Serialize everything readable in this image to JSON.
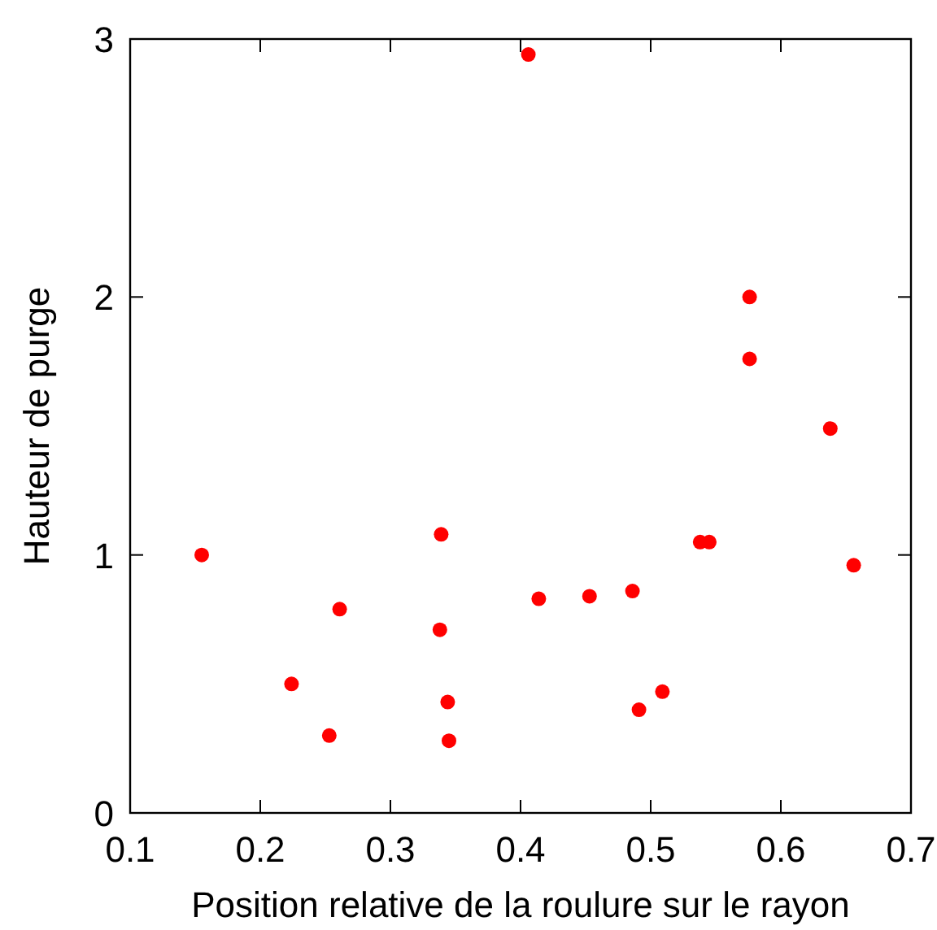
{
  "chart_data": {
    "type": "scatter",
    "xlabel": "Position relative de la roulure sur le rayon",
    "ylabel": "Hauteur de purge",
    "x": [
      0.155,
      0.406,
      0.224,
      0.261,
      0.253,
      0.339,
      0.338,
      0.344,
      0.345,
      0.414,
      0.453,
      0.486,
      0.491,
      0.509,
      0.538,
      0.545,
      0.576,
      0.576,
      0.638,
      0.656
    ],
    "series": [
      {
        "color": "#ff0000",
        "values": [
          1.0,
          2.94,
          0.5,
          0.79,
          0.3,
          1.08,
          0.71,
          0.43,
          0.28,
          0.83,
          0.84,
          0.86,
          0.4,
          0.47,
          1.05,
          1.05,
          2.0,
          1.76,
          1.49,
          0.96
        ]
      }
    ],
    "xlim": [
      0.1,
      0.7
    ],
    "xticks": [
      0.1,
      0.2,
      0.3,
      0.4,
      0.5,
      0.6,
      0.7
    ],
    "ylim": [
      0,
      3
    ],
    "yticks": [
      0,
      1,
      2,
      3
    ],
    "marker": "circle"
  }
}
